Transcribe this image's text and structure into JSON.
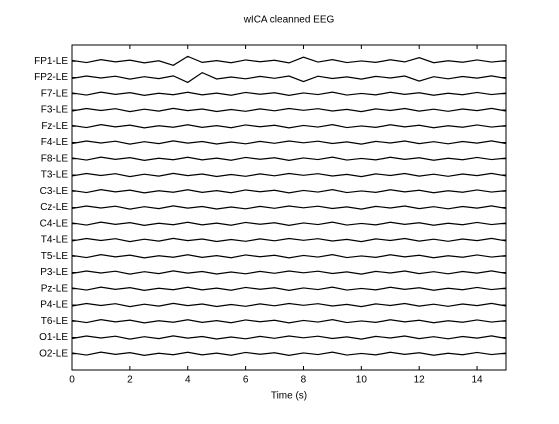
{
  "chart_data": {
    "type": "line",
    "title": "wICA cleanned EEG",
    "xlabel": "Time (s)",
    "color": "#000000",
    "xlim": [
      0,
      15
    ],
    "xticks": [
      0,
      2,
      4,
      6,
      8,
      10,
      12,
      14
    ],
    "ylim": [
      0,
      20
    ],
    "yticks": [
      {
        "value": 19,
        "label": "FP1-LE"
      },
      {
        "value": 18,
        "label": "FP2-LE"
      },
      {
        "value": 17,
        "label": "F7-LE"
      },
      {
        "value": 16,
        "label": "F3-LE"
      },
      {
        "value": 15,
        "label": "Fz-LE"
      },
      {
        "value": 14,
        "label": "F4-LE"
      },
      {
        "value": 13,
        "label": "F8-LE"
      },
      {
        "value": 12,
        "label": "T3-LE"
      },
      {
        "value": 11,
        "label": "C3-LE"
      },
      {
        "value": 10,
        "label": "Cz-LE"
      },
      {
        "value": 9,
        "label": "C4-LE"
      },
      {
        "value": 8,
        "label": "T4-LE"
      },
      {
        "value": 7,
        "label": "T5-LE"
      },
      {
        "value": 6,
        "label": "P3-LE"
      },
      {
        "value": 5,
        "label": "Pz-LE"
      },
      {
        "value": 4,
        "label": "P4-LE"
      },
      {
        "value": 3,
        "label": "T6-LE"
      },
      {
        "value": 2,
        "label": "O1-LE"
      },
      {
        "value": 1,
        "label": "O2-LE"
      }
    ],
    "x": [
      0,
      0.5,
      1,
      1.5,
      2,
      2.5,
      3,
      3.5,
      4,
      4.5,
      5,
      5.5,
      6,
      6.5,
      7,
      7.5,
      8,
      8.5,
      9,
      9.5,
      10,
      10.5,
      11,
      11.5,
      12,
      12.5,
      13,
      13.5,
      14,
      14.5,
      15
    ],
    "series": [
      {
        "values": [
          19.05,
          18.92,
          19.1,
          18.96,
          19.07,
          18.9,
          19.03,
          18.75,
          19.3,
          18.93,
          19.04,
          18.91,
          19.08,
          18.97,
          19.06,
          18.9,
          19.25,
          18.95,
          19.1,
          18.92,
          19.02,
          18.93,
          19.09,
          18.96,
          19.22,
          18.91,
          19.03,
          18.94,
          19.08,
          18.95,
          19.04
        ]
      },
      {
        "values": [
          17.94,
          18.09,
          17.97,
          18.08,
          17.9,
          18.05,
          17.93,
          18.1,
          17.7,
          18.3,
          17.91,
          18.03,
          17.92,
          18.07,
          17.95,
          18.09,
          17.75,
          18.08,
          17.94,
          18.04,
          17.9,
          18.07,
          17.97,
          18.09,
          17.78,
          18.05,
          17.92,
          18.06,
          17.96,
          18.1,
          17.94
        ]
      },
      {
        "values": [
          17.05,
          16.92,
          17.1,
          16.96,
          17.07,
          16.9,
          17.03,
          16.94,
          17.09,
          16.93,
          17.04,
          16.91,
          17.08,
          16.97,
          17.06,
          16.9,
          17.05,
          16.95,
          17.1,
          16.92,
          17.02,
          16.93,
          17.09,
          16.96,
          17.06,
          16.91,
          17.03,
          16.94,
          17.08,
          16.95,
          17.04
        ]
      },
      {
        "values": [
          15.94,
          16.09,
          15.97,
          16.08,
          15.9,
          16.05,
          15.93,
          16.1,
          15.96,
          16.06,
          15.91,
          16.03,
          15.92,
          16.07,
          15.95,
          16.09,
          15.98,
          16.08,
          15.94,
          16.04,
          15.9,
          16.07,
          15.97,
          16.09,
          15.93,
          16.05,
          15.92,
          16.06,
          15.96,
          16.1,
          15.94
        ]
      },
      {
        "values": [
          15.05,
          14.92,
          15.1,
          14.96,
          15.07,
          14.9,
          15.03,
          14.94,
          15.09,
          14.93,
          15.04,
          14.91,
          15.08,
          14.97,
          15.06,
          14.9,
          15.05,
          14.95,
          15.1,
          14.92,
          15.02,
          14.93,
          15.09,
          14.96,
          15.06,
          14.91,
          15.03,
          14.94,
          15.08,
          14.95,
          15.04
        ]
      },
      {
        "values": [
          13.94,
          14.09,
          13.97,
          14.08,
          13.9,
          14.05,
          13.93,
          14.1,
          13.96,
          14.06,
          13.91,
          14.03,
          13.92,
          14.07,
          13.95,
          14.09,
          13.98,
          14.08,
          13.94,
          14.04,
          13.9,
          14.07,
          13.97,
          14.09,
          13.93,
          14.05,
          13.92,
          14.06,
          13.96,
          14.1,
          13.94
        ]
      },
      {
        "values": [
          13.05,
          12.92,
          13.1,
          12.96,
          13.07,
          12.9,
          13.03,
          12.94,
          13.09,
          12.93,
          13.04,
          12.91,
          13.08,
          12.97,
          13.06,
          12.9,
          13.05,
          12.95,
          13.1,
          12.92,
          13.02,
          12.93,
          13.09,
          12.96,
          13.06,
          12.91,
          13.03,
          12.94,
          13.08,
          12.95,
          13.04
        ]
      },
      {
        "values": [
          11.94,
          12.09,
          11.97,
          12.08,
          11.9,
          12.05,
          11.93,
          12.1,
          11.96,
          12.06,
          11.91,
          12.03,
          11.92,
          12.07,
          11.95,
          12.09,
          11.98,
          12.08,
          11.94,
          12.04,
          11.9,
          12.07,
          11.97,
          12.09,
          11.93,
          12.05,
          11.92,
          12.06,
          11.96,
          12.1,
          11.94
        ]
      },
      {
        "values": [
          11.05,
          10.92,
          11.1,
          10.96,
          11.07,
          10.9,
          11.03,
          10.94,
          11.09,
          10.93,
          11.04,
          10.91,
          11.08,
          10.97,
          11.06,
          10.9,
          11.05,
          10.95,
          11.1,
          10.92,
          11.02,
          10.93,
          11.09,
          10.96,
          11.06,
          10.91,
          11.03,
          10.94,
          11.08,
          10.95,
          11.04
        ]
      },
      {
        "values": [
          9.94,
          10.09,
          9.97,
          10.08,
          9.9,
          10.05,
          9.93,
          10.1,
          9.96,
          10.06,
          9.91,
          10.03,
          9.92,
          10.07,
          9.95,
          10.09,
          9.98,
          10.08,
          9.94,
          10.04,
          9.9,
          10.07,
          9.97,
          10.09,
          9.93,
          10.05,
          9.92,
          10.06,
          9.96,
          10.1,
          9.94
        ]
      },
      {
        "values": [
          9.05,
          8.92,
          9.1,
          8.96,
          9.07,
          8.9,
          9.03,
          8.94,
          9.09,
          8.93,
          9.04,
          8.91,
          9.08,
          8.97,
          9.06,
          8.9,
          9.05,
          8.95,
          9.1,
          8.92,
          9.02,
          8.93,
          9.09,
          8.96,
          9.06,
          8.91,
          9.03,
          8.94,
          9.08,
          8.95,
          9.04
        ]
      },
      {
        "values": [
          7.94,
          8.09,
          7.97,
          8.08,
          7.9,
          8.05,
          7.93,
          8.1,
          7.96,
          8.06,
          7.91,
          8.03,
          7.92,
          8.07,
          7.95,
          8.09,
          7.98,
          8.08,
          7.94,
          8.04,
          7.9,
          8.07,
          7.97,
          8.09,
          7.93,
          8.05,
          7.92,
          8.06,
          7.96,
          8.1,
          7.94
        ]
      },
      {
        "values": [
          7.05,
          6.92,
          7.1,
          6.96,
          7.07,
          6.9,
          7.03,
          6.94,
          7.09,
          6.93,
          7.04,
          6.91,
          7.08,
          6.97,
          7.06,
          6.9,
          7.05,
          6.95,
          7.1,
          6.92,
          7.02,
          6.93,
          7.09,
          6.96,
          7.06,
          6.91,
          7.03,
          6.94,
          7.08,
          6.95,
          7.04
        ]
      },
      {
        "values": [
          5.94,
          6.09,
          5.97,
          6.08,
          5.9,
          6.05,
          5.93,
          6.1,
          5.96,
          6.06,
          5.91,
          6.03,
          5.92,
          6.07,
          5.95,
          6.09,
          5.98,
          6.08,
          5.94,
          6.04,
          5.9,
          6.07,
          5.97,
          6.09,
          5.93,
          6.05,
          5.92,
          6.06,
          5.96,
          6.1,
          5.94
        ]
      },
      {
        "values": [
          5.05,
          4.92,
          5.1,
          4.96,
          5.07,
          4.9,
          5.03,
          4.94,
          5.09,
          4.93,
          5.04,
          4.91,
          5.08,
          4.97,
          5.06,
          4.9,
          5.05,
          4.95,
          5.1,
          4.92,
          5.02,
          4.93,
          5.09,
          4.96,
          5.06,
          4.91,
          5.03,
          4.94,
          5.08,
          4.95,
          5.04
        ]
      },
      {
        "values": [
          3.94,
          4.09,
          3.97,
          4.08,
          3.9,
          4.05,
          3.93,
          4.1,
          3.96,
          4.06,
          3.91,
          4.03,
          3.92,
          4.07,
          3.95,
          4.09,
          3.98,
          4.08,
          3.94,
          4.04,
          3.9,
          4.07,
          3.97,
          4.09,
          3.93,
          4.05,
          3.92,
          4.06,
          3.96,
          4.1,
          3.94
        ]
      },
      {
        "values": [
          3.05,
          2.92,
          3.1,
          2.96,
          3.07,
          2.9,
          3.03,
          2.94,
          3.09,
          2.93,
          3.04,
          2.91,
          3.08,
          2.97,
          3.06,
          2.9,
          3.05,
          2.95,
          3.1,
          2.92,
          3.02,
          2.93,
          3.09,
          2.96,
          3.06,
          2.91,
          3.03,
          2.94,
          3.08,
          2.95,
          3.04
        ]
      },
      {
        "values": [
          1.94,
          2.09,
          1.97,
          2.08,
          1.9,
          2.05,
          1.93,
          2.1,
          1.96,
          2.06,
          1.91,
          2.03,
          1.92,
          2.07,
          1.95,
          2.09,
          1.98,
          2.08,
          1.94,
          2.04,
          1.9,
          2.07,
          1.97,
          2.09,
          1.93,
          2.05,
          1.92,
          2.06,
          1.96,
          2.1,
          1.94
        ]
      },
      {
        "values": [
          1.05,
          0.92,
          1.1,
          0.96,
          1.07,
          0.9,
          1.03,
          0.94,
          1.09,
          0.93,
          1.04,
          0.91,
          1.08,
          0.97,
          1.06,
          0.9,
          1.05,
          0.95,
          1.1,
          0.92,
          1.02,
          0.93,
          1.09,
          0.96,
          1.06,
          0.91,
          1.03,
          0.94,
          1.08,
          0.95,
          1.04
        ]
      }
    ]
  }
}
